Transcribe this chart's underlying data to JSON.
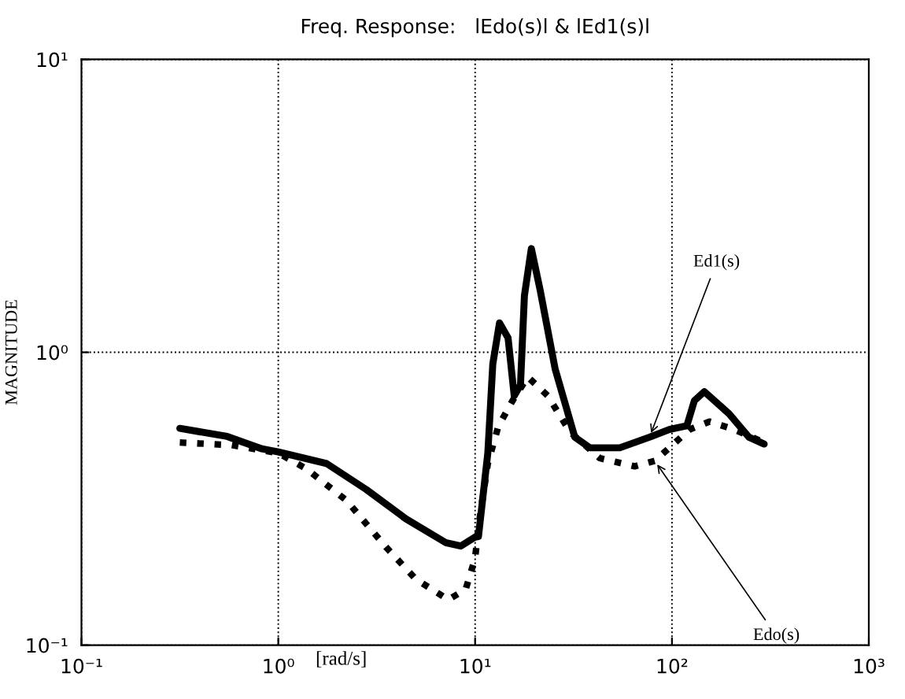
{
  "chart_data": {
    "type": "line",
    "title": "Freq. Response:   lEdo(s)l & lEd1(s)l",
    "xlabel": "[rad/s]",
    "ylabel": "MAGNITUDE",
    "log": "xy",
    "grid": true,
    "legend": false,
    "marker": "none",
    "xlim": [
      0.1,
      1000
    ],
    "ylim": [
      0.1,
      10
    ],
    "xticks": [
      {
        "value": 0.1,
        "label": "10⁻¹"
      },
      {
        "value": 1,
        "label": "10⁰"
      },
      {
        "value": 10,
        "label": "10¹"
      },
      {
        "value": 100,
        "label": "10²"
      },
      {
        "value": 1000,
        "label": "10³"
      }
    ],
    "yticks": [
      {
        "value": 0.1,
        "label": "10⁻¹"
      },
      {
        "value": 1,
        "label": "10⁰"
      },
      {
        "value": 10,
        "label": "10¹"
      }
    ],
    "series": [
      {
        "color": "#000000",
        "line_style": "solid",
        "x": [
          0.316,
          0.55,
          0.826,
          1.0,
          1.76,
          2.8,
          4.45,
          7.08,
          8.45,
          10,
          10.4,
          11.6,
          12.3,
          13.3,
          14.7,
          15.8,
          17.0,
          17.8,
          19.3,
          21.4,
          25.5,
          32.1,
          38.3,
          54.3,
          76.9,
          97,
          119,
          130,
          146,
          195,
          246,
          294
        ],
        "values": [
          0.55,
          0.516,
          0.468,
          0.457,
          0.417,
          0.34,
          0.27,
          0.224,
          0.218,
          0.234,
          0.235,
          0.453,
          0.913,
          1.26,
          1.12,
          0.71,
          0.774,
          1.56,
          2.26,
          1.63,
          0.877,
          0.513,
          0.472,
          0.472,
          0.513,
          0.545,
          0.561,
          0.684,
          0.734,
          0.617,
          0.513,
          0.486
        ]
      },
      {
        "color": "#000000",
        "line_style": "dotted",
        "x": [
          0.316,
          0.58,
          1.0,
          1.39,
          2.22,
          3.53,
          5.0,
          7.31,
          8.95,
          10.0,
          10.4,
          11.6,
          13.1,
          15.5,
          18.5,
          23.4,
          30.4,
          43,
          64.7,
          81.7,
          97,
          123,
          155,
          207,
          294
        ],
        "values": [
          0.492,
          0.482,
          0.453,
          0.4,
          0.312,
          0.216,
          0.168,
          0.143,
          0.155,
          0.198,
          0.254,
          0.417,
          0.557,
          0.684,
          0.824,
          0.71,
          0.534,
          0.435,
          0.408,
          0.426,
          0.472,
          0.545,
          0.58,
          0.545,
          0.492
        ]
      }
    ],
    "annotations": [
      {
        "text": "Ed1(s)",
        "x": 76.9,
        "y": 0.513
      },
      {
        "text": "Edo(s)",
        "x": 81.7,
        "y": 0.426
      }
    ]
  }
}
